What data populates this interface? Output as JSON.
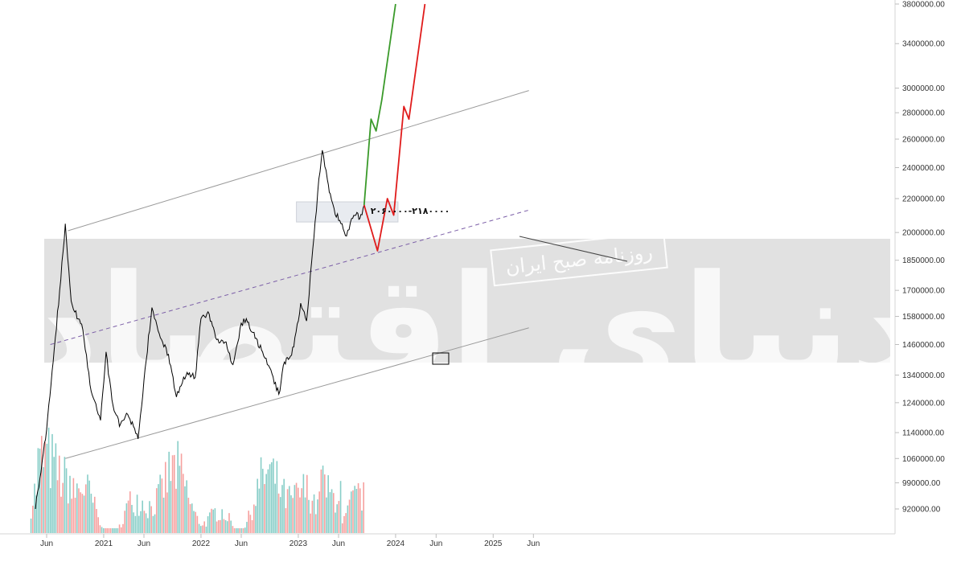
{
  "chart_data": {
    "type": "line",
    "title": "",
    "xlabel": "",
    "ylabel": "",
    "y_axis_position": "right",
    "y_ticks": [
      "920000.00",
      "990000.00",
      "1060000.00",
      "1140000.00",
      "1240000.00",
      "1340000.00",
      "1460000.00",
      "1580000.00",
      "1700000.00",
      "1850000.00",
      "2000000.00",
      "2200000.00",
      "2400000.00",
      "2600000.00",
      "2800000.00",
      "3000000.00",
      "3400000.00",
      "3800000.00"
    ],
    "x_ticks": [
      "Jun",
      "2021",
      "Jun",
      "2022",
      "Jun",
      "2023",
      "Jun",
      "2024",
      "Jun",
      "2025",
      "Jun"
    ],
    "range_annotation": "۲۰۶۰۰۰۰-۲۱۸۰۰۰۰",
    "watermarks": [
      "دنیای اقتصاد",
      "روزنامه صبح ایران"
    ],
    "price_path_dates": [
      "2020-04-20",
      "2020-06-01",
      "2020-07-20",
      "2020-08-10",
      "2020-09-01",
      "2020-10-15",
      "2020-11-15",
      "2020-12-20",
      "2021-01-10",
      "2021-02-01",
      "2021-03-01",
      "2021-04-01",
      "2021-05-10",
      "2021-06-01",
      "2021-07-01",
      "2021-07-20",
      "2021-08-10",
      "2021-09-01",
      "2021-10-01",
      "2021-11-10",
      "2021-12-10",
      "2022-01-01",
      "2022-02-01",
      "2022-03-01",
      "2022-04-01",
      "2022-05-01",
      "2022-06-01",
      "2022-06-20",
      "2022-07-15",
      "2022-08-20",
      "2022-09-20",
      "2022-10-20",
      "2022-11-10",
      "2022-11-25",
      "2022-12-15",
      "2023-01-10",
      "2023-02-01",
      "2023-02-20",
      "2023-03-05",
      "2023-03-15",
      "2023-04-01",
      "2023-04-20",
      "2023-05-01",
      "2023-05-15",
      "2023-06-10",
      "2023-07-01",
      "2023-07-20",
      "2023-08-05",
      "2023-08-20",
      "2023-09-05"
    ],
    "price_path_values": [
      920000,
      1150000,
      1700000,
      2050000,
      1650000,
      1520000,
      1280000,
      1180000,
      1430000,
      1250000,
      1160000,
      1200000,
      1120000,
      1320000,
      1620000,
      1540000,
      1470000,
      1420000,
      1260000,
      1350000,
      1330000,
      1570000,
      1590000,
      1480000,
      1470000,
      1380000,
      1550000,
      1570000,
      1510000,
      1430000,
      1360000,
      1270000,
      1390000,
      1400000,
      1450000,
      1640000,
      1560000,
      1840000,
      2060000,
      2240000,
      2520000,
      2320000,
      2230000,
      2140000,
      2050000,
      1980000,
      2080000,
      2100000,
      2080000,
      2160000
    ],
    "channel_lines": [
      {
        "name": "upper",
        "points": [
          [
            "2020-08-20",
            2010000
          ],
          [
            "2025-05-15",
            2980000
          ]
        ]
      },
      {
        "name": "lower",
        "points": [
          [
            "2020-08-10",
            1060000
          ],
          [
            "2025-05-15",
            1530000
          ]
        ]
      },
      {
        "name": "middle",
        "points": [
          [
            "2020-06-15",
            1460000
          ],
          [
            "2025-05-15",
            2130000
          ]
        ]
      }
    ],
    "bullish_scenario_dates": [
      "2023-09-05",
      "2023-10-01",
      "2023-10-20",
      "2023-11-10",
      "2024-01-01"
    ],
    "bullish_scenario_values": [
      2160000,
      2750000,
      2660000,
      2900000,
      3800000
    ],
    "bearish_scenario_dates": [
      "2023-09-05",
      "2023-10-25",
      "2023-12-01",
      "2023-12-25",
      "2024-02-01",
      "2024-02-20",
      "2024-04-20"
    ],
    "bearish_scenario_values": [
      2160000,
      1900000,
      2200000,
      2100000,
      2850000,
      2750000,
      3800000
    ],
    "volume_dates_start": "2020-04-01",
    "volume_dates_end": "2023-09-05",
    "volume_colors": {
      "up": "#26a69a",
      "down": "#ef5350"
    },
    "colors": {
      "price": "#000000",
      "channel": "#9a9a9a",
      "middle": "#7b5ea7",
      "bullish": "#3a9a2a",
      "bearish": "#e01b1b",
      "zone": "#dfe3ea"
    }
  }
}
